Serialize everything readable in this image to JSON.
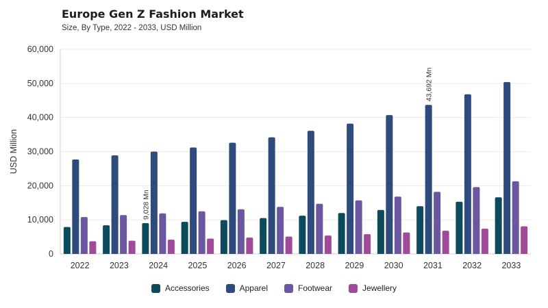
{
  "chart_data": {
    "type": "bar",
    "title": "Europe Gen Z Fashion Market",
    "subtitle": "Size, By Type, 2022 - 2033, USD Million",
    "xlabel": "",
    "ylabel": "USD Million",
    "ylim": [
      0,
      60000
    ],
    "yticks": [
      0,
      10000,
      20000,
      30000,
      40000,
      50000,
      60000
    ],
    "ytick_labels": [
      "0",
      "10,000",
      "20,000",
      "30,000",
      "40,000",
      "50,000",
      "60,000"
    ],
    "categories": [
      "2022",
      "2023",
      "2024",
      "2025",
      "2026",
      "2027",
      "2028",
      "2029",
      "2030",
      "2031",
      "2032",
      "2033"
    ],
    "series": [
      {
        "name": "Accessories",
        "color": "#0d4a5c",
        "values": [
          7900,
          8400,
          9028,
          9400,
          9900,
          10500,
          11200,
          12000,
          12900,
          14000,
          15300,
          16600
        ]
      },
      {
        "name": "Apparel",
        "color": "#2f4b7c",
        "values": [
          27700,
          28900,
          30000,
          31200,
          32600,
          34200,
          36100,
          38200,
          40700,
          43692,
          46800,
          50400
        ]
      },
      {
        "name": "Footwear",
        "color": "#6b56a0",
        "values": [
          10800,
          11400,
          11900,
          12500,
          13100,
          13800,
          14700,
          15700,
          16800,
          18200,
          19600,
          21300
        ]
      },
      {
        "name": "Jewellery",
        "color": "#a04a9a",
        "values": [
          3700,
          3900,
          4200,
          4500,
          4800,
          5100,
          5400,
          5800,
          6300,
          6800,
          7400,
          8100
        ]
      }
    ],
    "annotations": [
      {
        "text": "9,028 Mn",
        "category": "2024",
        "series": "Accessories"
      },
      {
        "text": "43,692 Mn",
        "category": "2031",
        "series": "Apparel"
      }
    ],
    "grid": true,
    "legend_position": "bottom"
  }
}
